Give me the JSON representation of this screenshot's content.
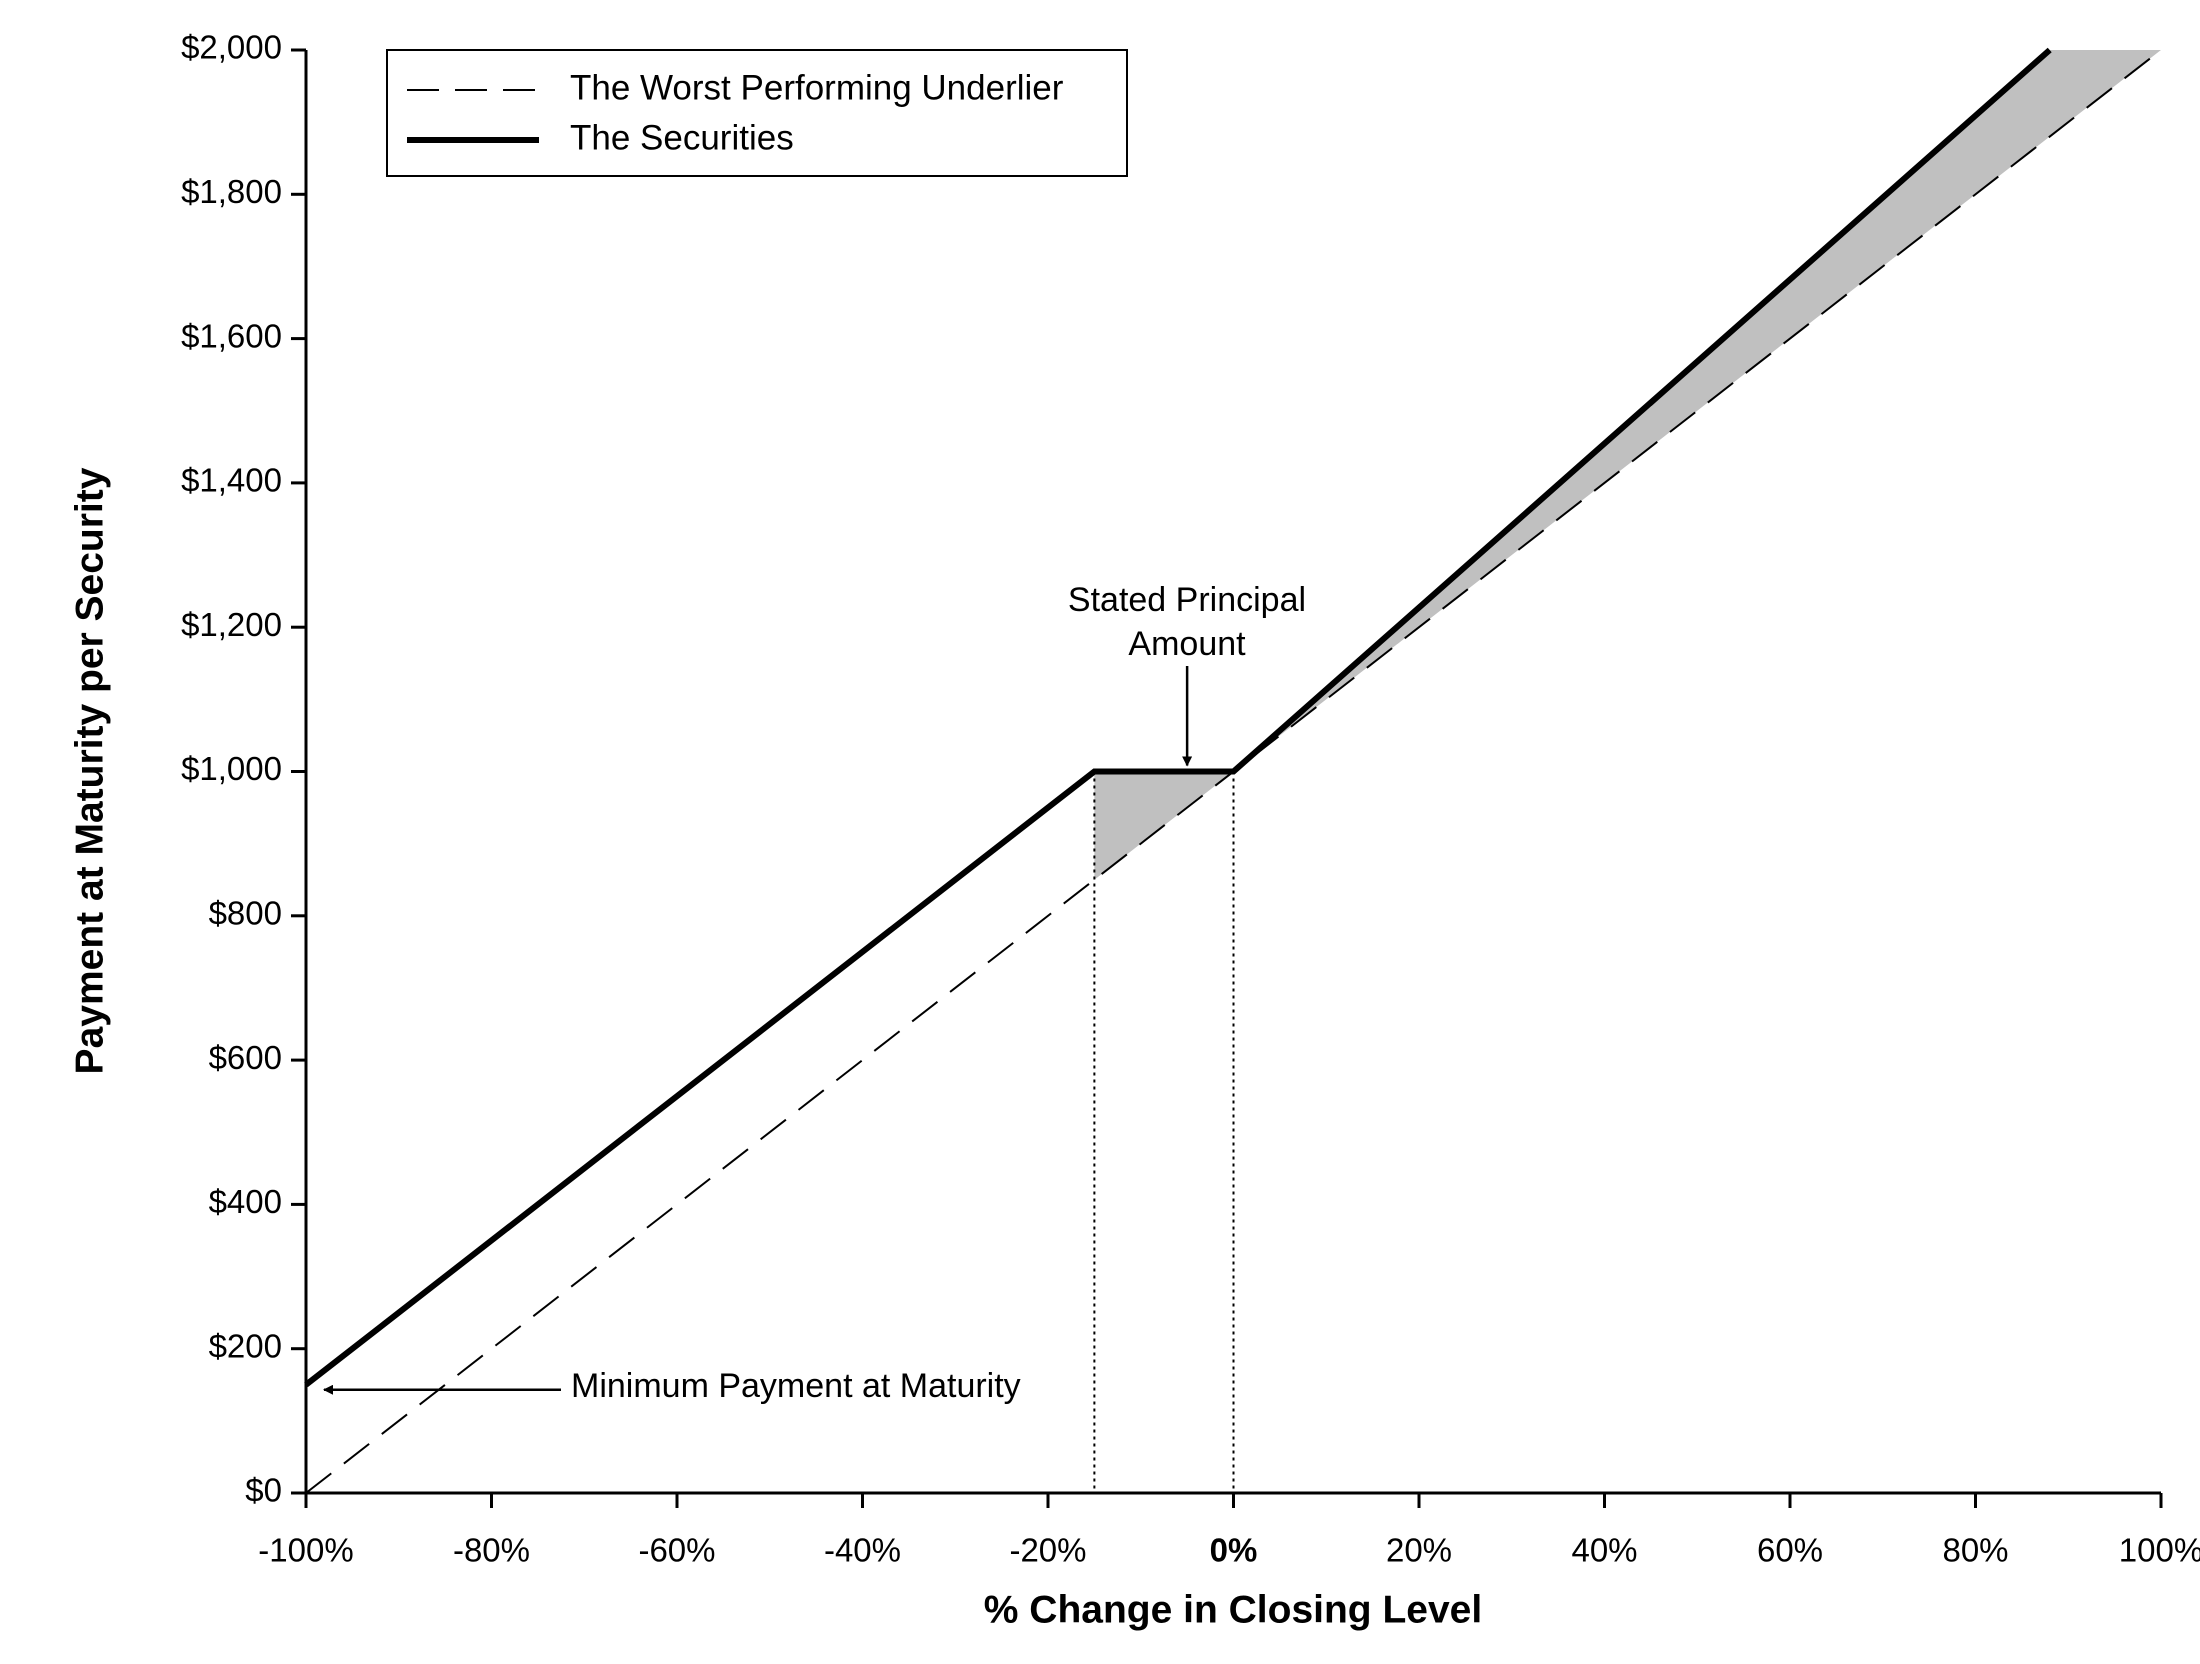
{
  "chart_data": {
    "type": "line",
    "xlabel": "% Change in Closing Level",
    "ylabel": "Payment at Maturity per Security",
    "xlim": [
      -100,
      100
    ],
    "ylim": [
      0,
      2000
    ],
    "xticks": [
      {
        "value": -100,
        "label": "-100%"
      },
      {
        "value": -80,
        "label": "-80%"
      },
      {
        "value": -60,
        "label": "-60%"
      },
      {
        "value": -40,
        "label": "-40%"
      },
      {
        "value": -20,
        "label": "-20%"
      },
      {
        "value": 0,
        "label": "0%"
      },
      {
        "value": 20,
        "label": "20%"
      },
      {
        "value": 40,
        "label": "40%"
      },
      {
        "value": 60,
        "label": "60%"
      },
      {
        "value": 80,
        "label": "80%"
      },
      {
        "value": 100,
        "label": "100%"
      }
    ],
    "yticks": [
      {
        "value": 0,
        "label": "$0"
      },
      {
        "value": 200,
        "label": "$200"
      },
      {
        "value": 400,
        "label": "$400"
      },
      {
        "value": 600,
        "label": "$600"
      },
      {
        "value": 800,
        "label": "$800"
      },
      {
        "value": 1000,
        "label": "$1,000"
      },
      {
        "value": 1200,
        "label": "$1,200"
      },
      {
        "value": 1400,
        "label": "$1,400"
      },
      {
        "value": 1600,
        "label": "$1,600"
      },
      {
        "value": 1800,
        "label": "$1,800"
      },
      {
        "value": 2000,
        "label": "$2,000"
      }
    ],
    "grid": false,
    "legend": "upper left",
    "series": [
      {
        "name": "The Worst Performing Underlier",
        "color": "#000000",
        "style": "dashed",
        "x": [
          -100,
          100
        ],
        "values": [
          0,
          2000
        ]
      },
      {
        "name": "The Securities",
        "color": "#000000",
        "style": "solid",
        "x": [
          -100,
          -15,
          0,
          88
        ],
        "values": [
          150,
          1000,
          1000,
          2000
        ]
      }
    ],
    "annotations": [
      {
        "text": "Stated Principal Amount",
        "x": -5,
        "y": 1000
      },
      {
        "text": "Minimum Payment at Maturity",
        "x": -100,
        "y": 150
      }
    ]
  }
}
